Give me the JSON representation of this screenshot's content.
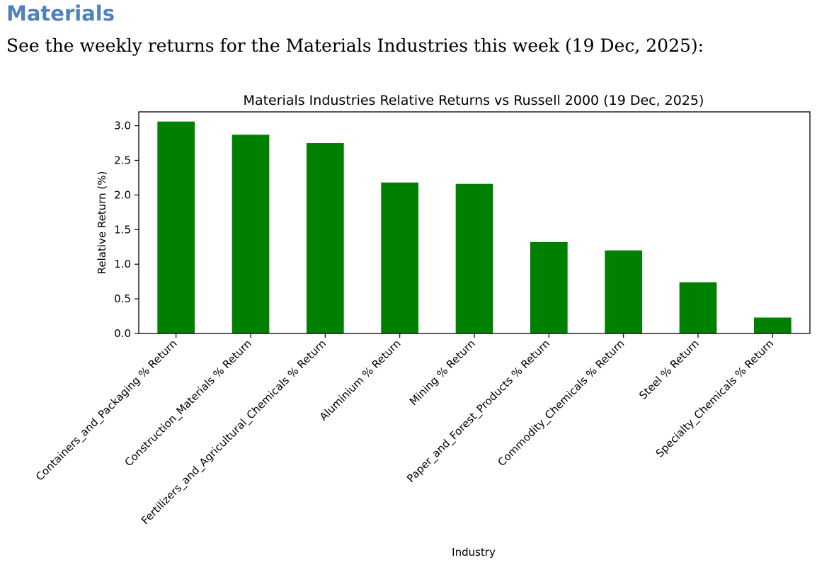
{
  "page": {
    "heading": "Materials",
    "intro": "See the weekly returns for the Materials Industries this week (19 Dec, 2025):"
  },
  "colors": {
    "heading": "#4f81bd",
    "bar": "#008000",
    "axis": "#000000"
  },
  "chart_data": {
    "type": "bar",
    "title": "Materials Industries Relative Returns vs Russell 2000 (19 Dec, 2025)",
    "xlabel": "Industry",
    "ylabel": "Relative Return (%)",
    "categories": [
      "Containers_and_Packaging % Return",
      "Construction_Materials % Return",
      "Fertilizers_and_Agricultural_Chemicals % Return",
      "Aluminium % Return",
      "Mining % Return",
      "Paper_and_Forest_Products % Return",
      "Commodity_Chemicals % Return",
      "Steel % Return",
      "Specialty_Chemicals % Return"
    ],
    "values": [
      3.06,
      2.87,
      2.75,
      2.18,
      2.16,
      1.32,
      1.2,
      0.74,
      0.23
    ],
    "ylim": [
      0,
      3.2
    ],
    "yticks": [
      "0.0",
      "0.5",
      "1.0",
      "1.5",
      "2.0",
      "2.5",
      "3.0"
    ],
    "grid": false,
    "legend": "none"
  }
}
